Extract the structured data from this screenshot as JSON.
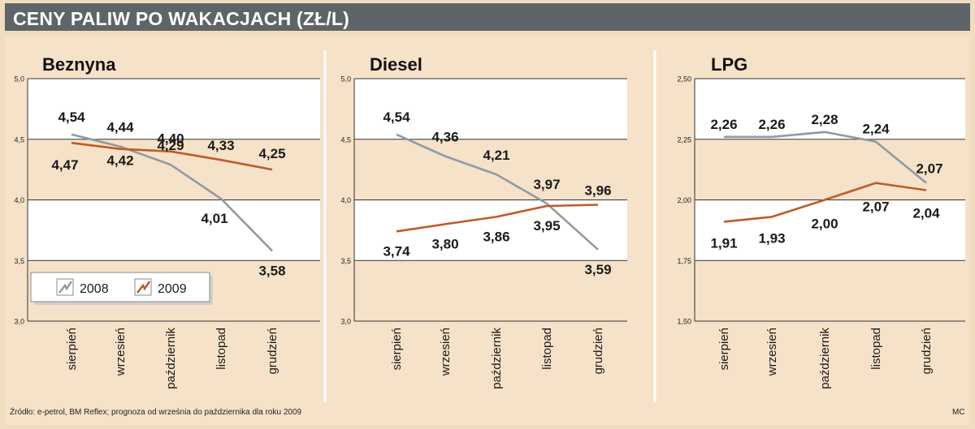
{
  "title": "CENY PALIW PO WAKACJACH (ZŁ/L)",
  "source": "Źródło: e-petrol, BM Reflex; prognoza od września do października dla roku 2009",
  "author": "MC",
  "colors": {
    "series_2008": "#8e9ba4",
    "series_2009": "#c05a28",
    "band": "#ffffff",
    "background": "#f6e2c8",
    "header": "#5e6468"
  },
  "legend": {
    "labels": [
      "2008",
      "2009"
    ],
    "placement": "bottom-left of first chart"
  },
  "chart_data": [
    {
      "type": "line",
      "title": "Beznyna",
      "categories": [
        "sierpień",
        "wrzesień",
        "październik",
        "listopad",
        "grudzień"
      ],
      "yticks": [
        "3,0",
        "3,5",
        "4,0",
        "4,5",
        "5,0"
      ],
      "ylim": [
        3.0,
        5.0
      ],
      "series": [
        {
          "name": "2008",
          "values": [
            4.54,
            4.44,
            4.29,
            4.01,
            3.58
          ],
          "labels": [
            "4,54",
            "4,44",
            "4,29",
            "4,01",
            "3,58"
          ]
        },
        {
          "name": "2009",
          "values": [
            4.47,
            4.42,
            4.4,
            4.33,
            4.25
          ],
          "labels": [
            "4,47",
            "4,42",
            "4,40",
            "4,33",
            "4,25"
          ]
        }
      ]
    },
    {
      "type": "line",
      "title": "Diesel",
      "categories": [
        "sierpień",
        "wrzesień",
        "październik",
        "listopad",
        "grudzień"
      ],
      "yticks": [
        "3,0",
        "3,5",
        "4,0",
        "4,5",
        "5,0"
      ],
      "ylim": [
        3.0,
        5.0
      ],
      "series": [
        {
          "name": "2008",
          "values": [
            4.54,
            4.36,
            4.21,
            3.97,
            3.59
          ],
          "labels": [
            "4,54",
            "4,36",
            "4,21",
            "3,97",
            "3,59"
          ]
        },
        {
          "name": "2009",
          "values": [
            3.74,
            3.8,
            3.86,
            3.95,
            3.96
          ],
          "labels": [
            "3,74",
            "3,80",
            "3,86",
            "3,95",
            "3,96"
          ]
        }
      ]
    },
    {
      "type": "line",
      "title": "LPG",
      "categories": [
        "sierpień",
        "wrzesień",
        "październik",
        "listopad",
        "grudzień"
      ],
      "yticks": [
        "1,50",
        "1,75",
        "2,00",
        "2,25",
        "2,50"
      ],
      "ylim": [
        1.5,
        2.5
      ],
      "series": [
        {
          "name": "2008",
          "values": [
            2.26,
            2.26,
            2.28,
            2.24,
            2.07
          ],
          "labels": [
            "2,26",
            "2,26",
            "2,28",
            "2,24",
            "2,07"
          ]
        },
        {
          "name": "2009",
          "values": [
            1.91,
            1.93,
            2.0,
            2.07,
            2.04
          ],
          "labels": [
            "1,91",
            "1,93",
            "2,00",
            "2,07",
            "2,04"
          ]
        }
      ]
    }
  ]
}
